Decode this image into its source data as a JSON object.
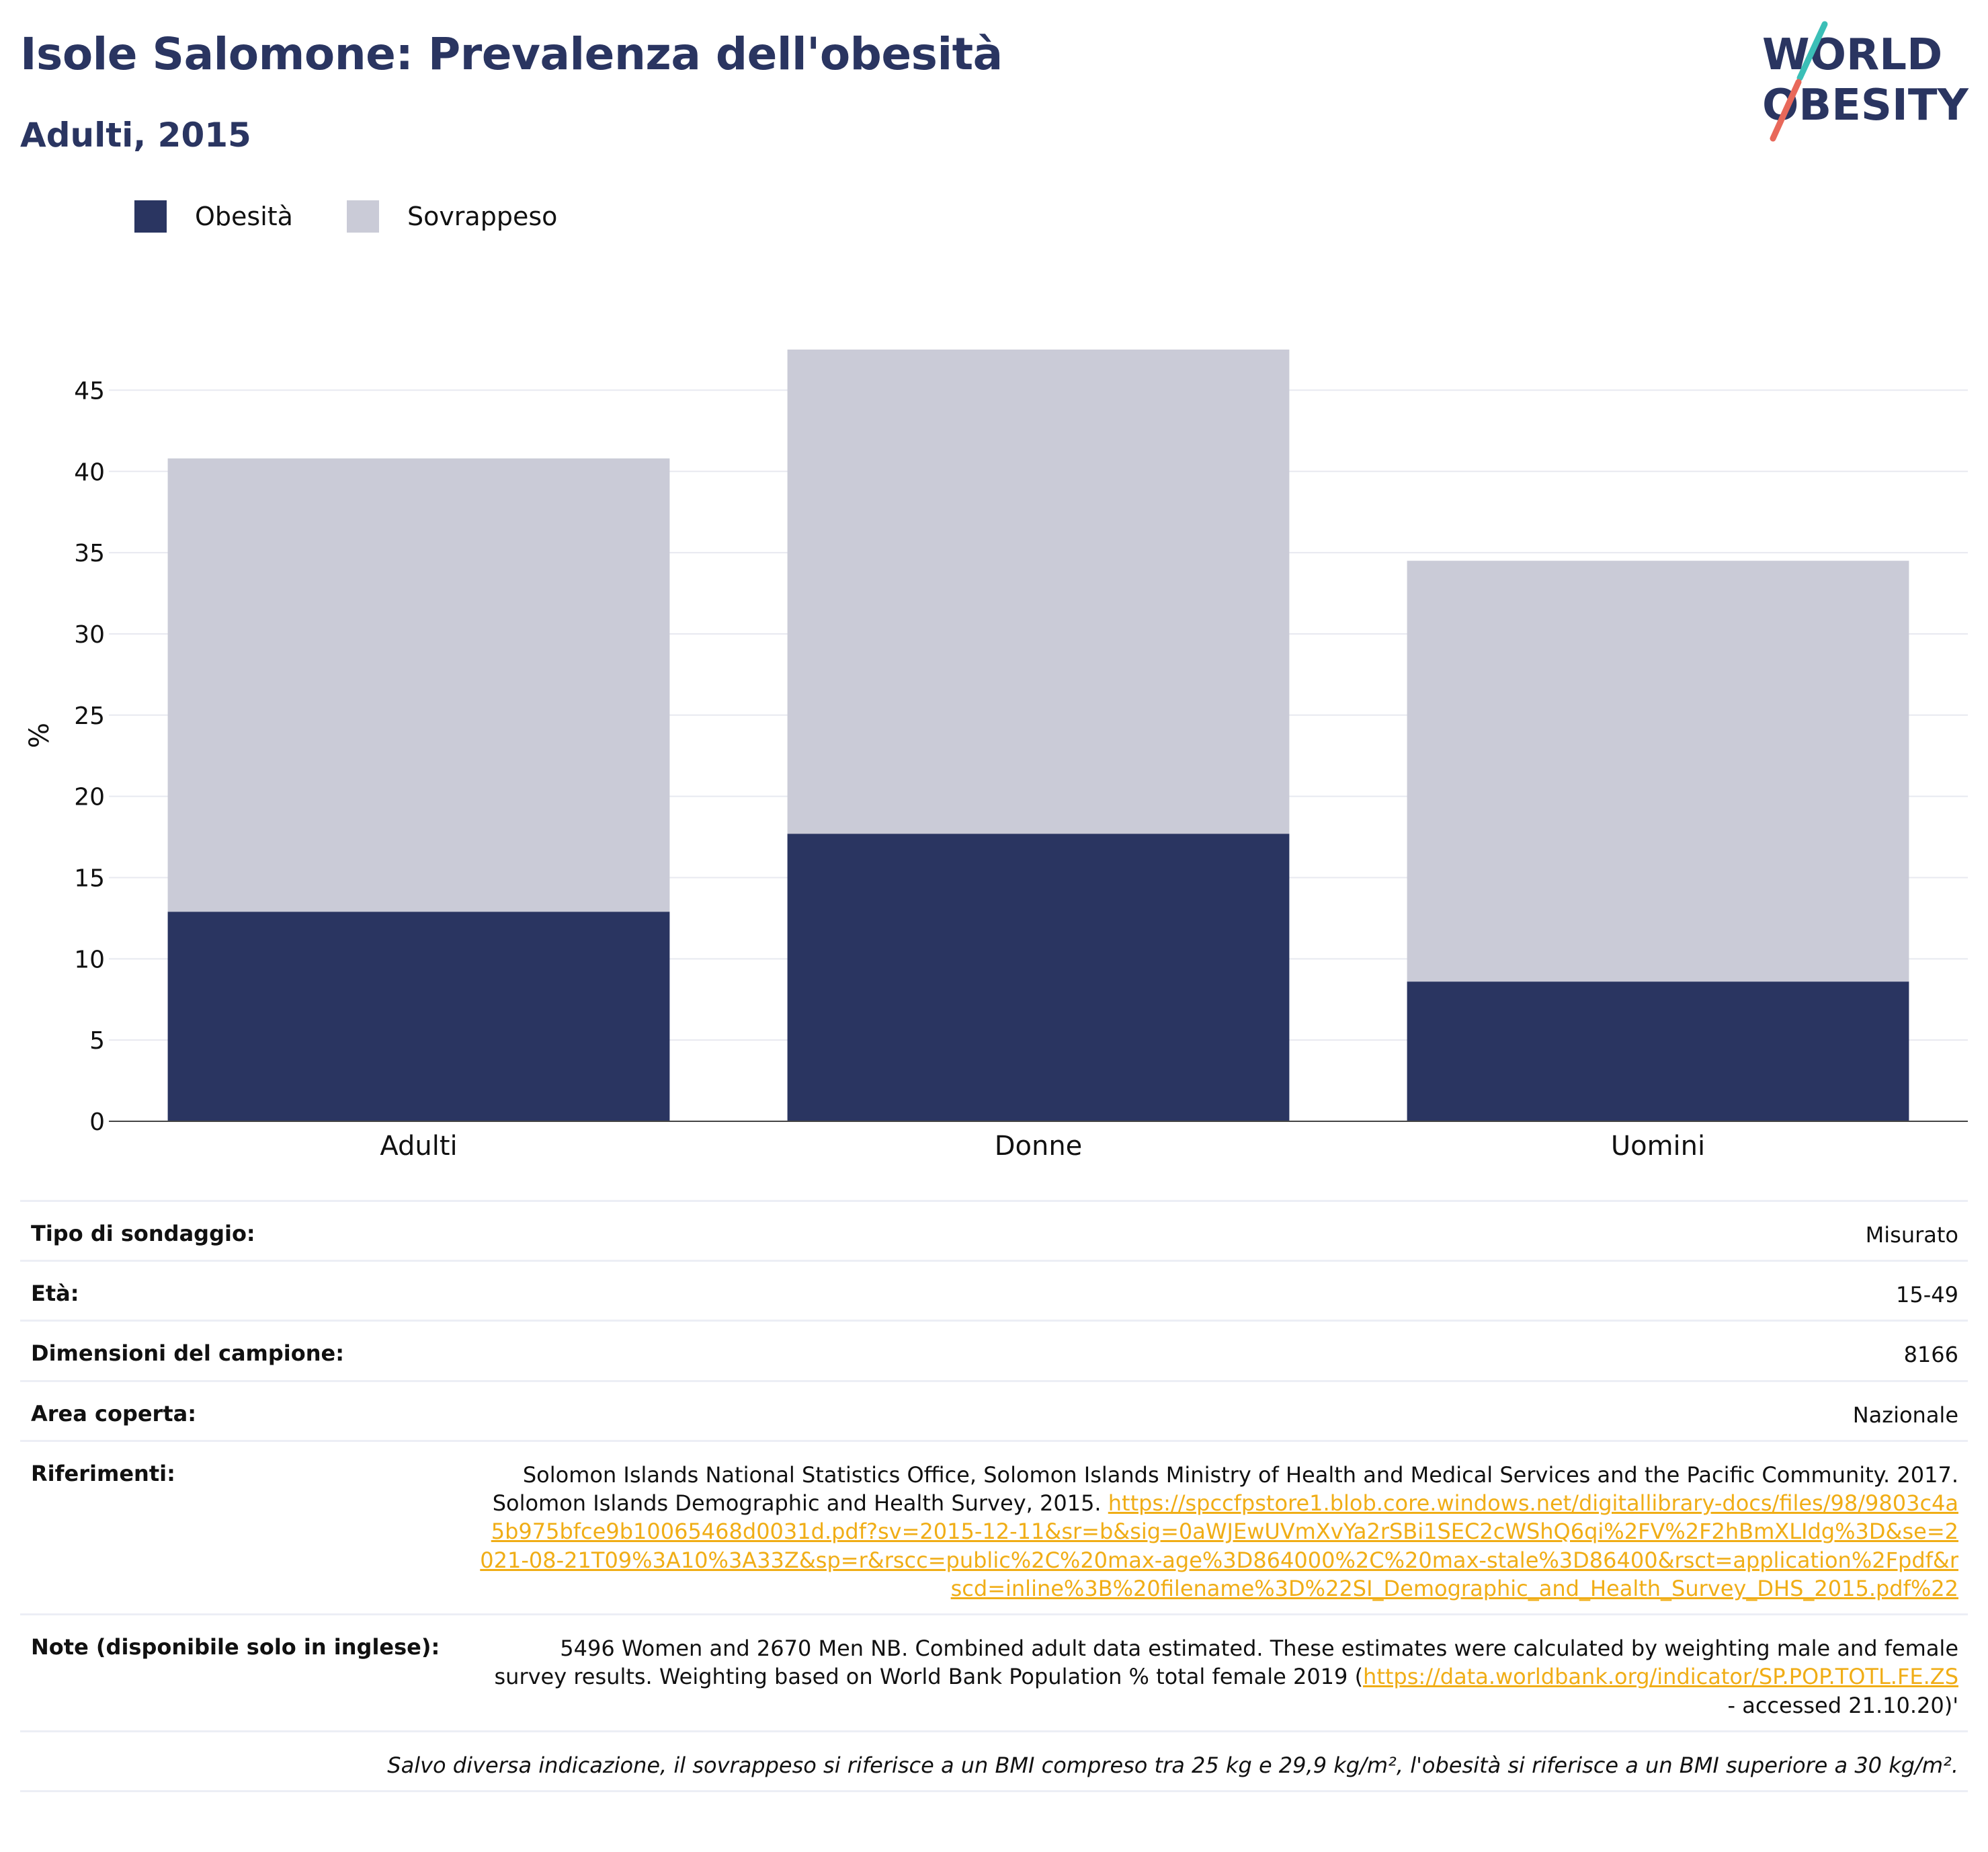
{
  "header": {
    "title": "Isole Salomone: Prevalenza dell'obesità",
    "subtitle": "Adulti, 2015",
    "logo_line1": "WORLD",
    "logo_line2": "OBESITY"
  },
  "legend": {
    "obesity_label": "Obesità",
    "overweight_label": "Sovrappeso"
  },
  "colors": {
    "obesity": "#2a3561",
    "overweight": "#cacbd7",
    "title": "#2a3561",
    "link": "#f0ad16",
    "logo_teal": "#3bbfb7",
    "logo_red": "#e8685a"
  },
  "chart_data": {
    "type": "bar",
    "stacked": true,
    "categories": [
      "Adulti",
      "Donne",
      "Uomini"
    ],
    "series": [
      {
        "name": "Obesità",
        "values": [
          12.9,
          17.7,
          8.6
        ]
      },
      {
        "name": "Sovrappeso",
        "values": [
          27.9,
          29.8,
          25.9
        ]
      }
    ],
    "totals": [
      40.8,
      47.5,
      34.5
    ],
    "ylabel": "%",
    "ylim": [
      0,
      47.5
    ],
    "yticks": [
      0,
      5,
      10,
      15,
      20,
      25,
      30,
      35,
      40,
      45
    ],
    "grid": true,
    "legend_position": "top-left"
  },
  "info": {
    "survey_type": {
      "label": "Tipo di sondaggio:",
      "value": "Misurato"
    },
    "age": {
      "label": "Età:",
      "value": "15-49"
    },
    "sample_size": {
      "label": "Dimensioni del campione:",
      "value": "8166"
    },
    "area": {
      "label": "Area coperta:",
      "value": "Nazionale"
    },
    "references": {
      "label": "Riferimenti:",
      "text": "Solomon Islands National Statistics Office, Solomon Islands Ministry of Health and Medical Services and the Pacific Community. 2017. Solomon Islands Demographic and Health Survey, 2015. ",
      "link": "https://spccfpstore1.blob.core.windows.net/digitallibrary-docs/files/98/9803c4a5b975bfce9b10065468d0031d.pdf?sv=2015-12-11&sr=b&sig=0aWJEwUVmXvYa2rSBi1SEC2cWShQ6qi%2FV%2F2hBmXLIdg%3D&se=2021-08-21T09%3A10%3A33Z&sp=r&rscc=public%2C%20max-age%3D864000%2C%20max-stale%3D86400&rsct=application%2Fpdf&rscd=inline%3B%20filename%3D%22SI_Demographic_and_Health_Survey_DHS_2015.pdf%22"
    },
    "notes": {
      "label": "Note (disponibile solo in inglese):",
      "text": "5496 Women and 2670 Men NB. Combined adult data estimated. These estimates were calculated by weighting male and female survey results. Weighting based on World Bank Population % total female 2019 (",
      "link": "https://data.worldbank.org/indicator/SP.POP.TOTL.FE.ZS",
      "text_after": " - accessed 21.10.20)'"
    },
    "footnote": "Salvo diversa indicazione, il sovrappeso si riferisce a un BMI compreso tra 25 kg e 29,9 kg/m², l'obesità si riferisce a un BMI superiore a 30 kg/m²."
  }
}
